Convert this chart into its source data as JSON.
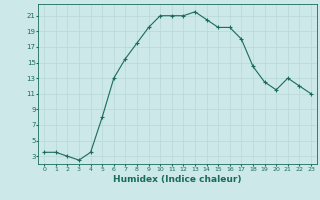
{
  "x": [
    0,
    1,
    2,
    3,
    4,
    5,
    6,
    7,
    8,
    9,
    10,
    11,
    12,
    13,
    14,
    15,
    16,
    17,
    18,
    19,
    20,
    21,
    22,
    23
  ],
  "y": [
    3.5,
    3.5,
    3.0,
    2.5,
    3.5,
    8.0,
    13.0,
    15.5,
    17.5,
    19.5,
    21.0,
    21.0,
    21.0,
    21.5,
    20.5,
    19.5,
    19.5,
    18.0,
    14.5,
    12.5,
    11.5,
    13.0,
    12.0,
    11.0
  ],
  "xlabel": "Humidex (Indice chaleur)",
  "bg_color": "#cce8e8",
  "line_color": "#1a6b5a",
  "grid_color": "#b8d8d8",
  "text_color": "#1a6b5a",
  "yticks": [
    3,
    5,
    7,
    9,
    11,
    13,
    15,
    17,
    19,
    21
  ],
  "xticks": [
    0,
    1,
    2,
    3,
    4,
    5,
    6,
    7,
    8,
    9,
    10,
    11,
    12,
    13,
    14,
    15,
    16,
    17,
    18,
    19,
    20,
    21,
    22,
    23
  ],
  "ylim": [
    2.0,
    22.5
  ],
  "xlim": [
    -0.5,
    23.5
  ]
}
